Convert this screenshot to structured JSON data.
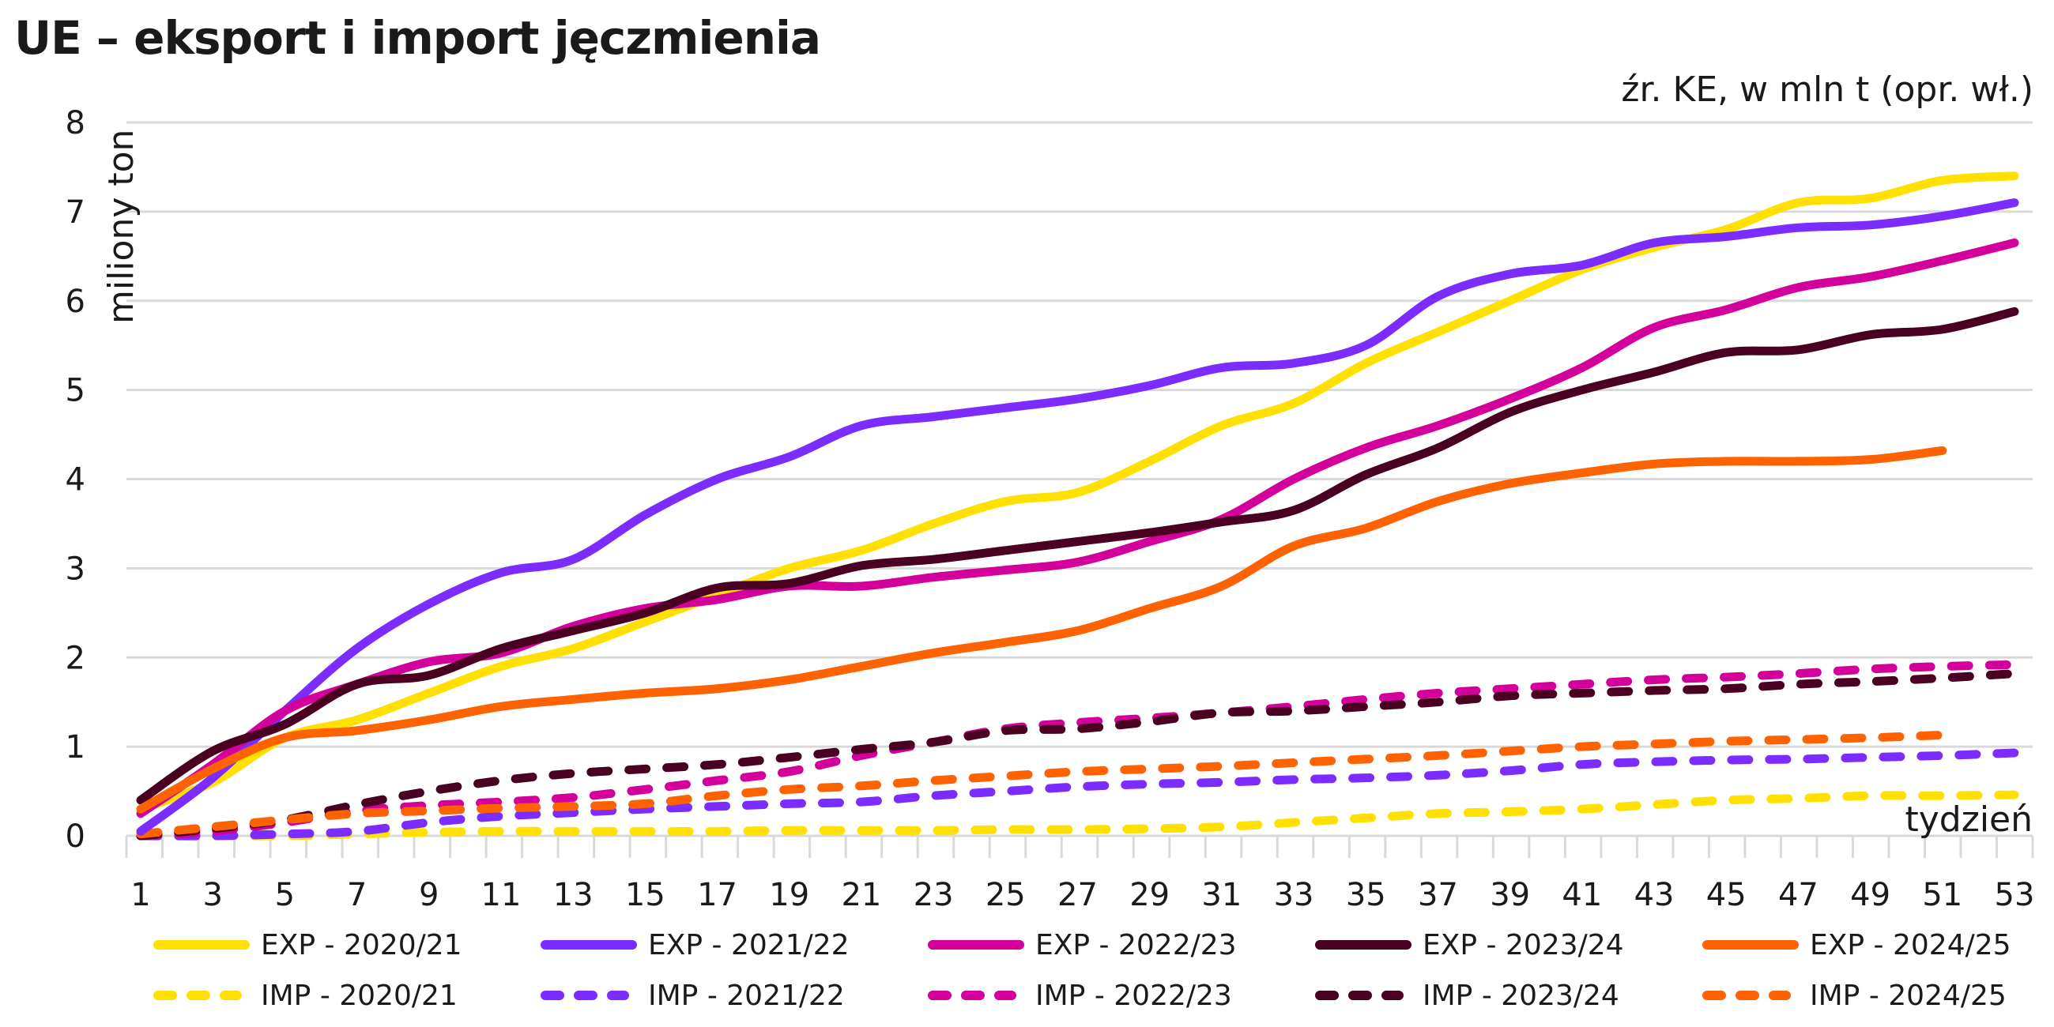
{
  "title": "UE – eksport i import jęczmienia",
  "source": "źr. KE, w mln t (opr. wł.)",
  "chart_data": {
    "type": "line",
    "title": "UE – eksport i import jęczmienia",
    "subtitle": "źr. KE, w mln t (opr. wł.)",
    "xlabel": "tydzień",
    "ylabel": "miliony ton",
    "xlim": [
      1,
      53
    ],
    "ylim": [
      0,
      8
    ],
    "yticks": [
      "0",
      "1",
      "2",
      "3",
      "4",
      "5",
      "6",
      "7",
      "8"
    ],
    "xtick_labels": [
      "1",
      "3",
      "5",
      "7",
      "9",
      "11",
      "13",
      "15",
      "17",
      "19",
      "21",
      "23",
      "25",
      "27",
      "29",
      "31",
      "33",
      "35",
      "37",
      "39",
      "41",
      "43",
      "45",
      "47",
      "49",
      "51",
      "53"
    ],
    "grid": "horizontal",
    "legend_position": "bottom",
    "x": [
      1,
      3,
      5,
      7,
      9,
      11,
      13,
      15,
      17,
      19,
      21,
      23,
      25,
      27,
      29,
      31,
      33,
      35,
      37,
      39,
      41,
      43,
      45,
      47,
      49,
      51,
      53
    ],
    "series": [
      {
        "name": "EXP - 2020/21",
        "color": "#FFE000",
        "style": "solid",
        "values": [
          0.3,
          0.6,
          1.1,
          1.3,
          1.6,
          1.9,
          2.1,
          2.4,
          2.7,
          3.0,
          3.2,
          3.5,
          3.75,
          3.85,
          4.2,
          4.6,
          4.85,
          5.3,
          5.65,
          6.0,
          6.35,
          6.6,
          6.8,
          7.1,
          7.15,
          7.35,
          7.4
        ]
      },
      {
        "name": "EXP - 2021/22",
        "color": "#7B2CFF",
        "style": "solid",
        "values": [
          0.05,
          0.65,
          1.4,
          2.1,
          2.6,
          2.95,
          3.1,
          3.6,
          4.0,
          4.25,
          4.6,
          4.7,
          4.8,
          4.9,
          5.05,
          5.25,
          5.3,
          5.5,
          6.05,
          6.3,
          6.4,
          6.65,
          6.72,
          6.82,
          6.85,
          6.95,
          7.1
        ]
      },
      {
        "name": "EXP - 2022/23",
        "color": "#D4009C",
        "style": "solid",
        "values": [
          0.25,
          0.8,
          1.4,
          1.7,
          1.95,
          2.05,
          2.35,
          2.55,
          2.65,
          2.8,
          2.8,
          2.9,
          2.98,
          3.07,
          3.3,
          3.55,
          4.0,
          4.35,
          4.6,
          4.9,
          5.25,
          5.7,
          5.9,
          6.15,
          6.27,
          6.45,
          6.65
        ]
      },
      {
        "name": "EXP - 2023/24",
        "color": "#4A0020",
        "style": "solid",
        "values": [
          0.4,
          0.95,
          1.25,
          1.7,
          1.8,
          2.1,
          2.3,
          2.5,
          2.78,
          2.83,
          3.03,
          3.1,
          3.2,
          3.3,
          3.4,
          3.52,
          3.65,
          4.05,
          4.35,
          4.75,
          5.0,
          5.2,
          5.42,
          5.45,
          5.62,
          5.68,
          5.88
        ]
      },
      {
        "name": "EXP - 2024/25",
        "color": "#FF6200",
        "style": "solid",
        "values": [
          0.3,
          0.75,
          1.1,
          1.18,
          1.3,
          1.45,
          1.53,
          1.6,
          1.65,
          1.75,
          1.9,
          2.05,
          2.17,
          2.3,
          2.55,
          2.8,
          3.25,
          3.45,
          3.75,
          3.95,
          4.07,
          4.17,
          4.2,
          4.2,
          4.22,
          4.32,
          null
        ]
      },
      {
        "name": "IMP - 2020/21",
        "color": "#FFE000",
        "style": "dashed",
        "values": [
          0.0,
          0.0,
          0.0,
          0.02,
          0.04,
          0.05,
          0.05,
          0.05,
          0.05,
          0.06,
          0.06,
          0.06,
          0.07,
          0.07,
          0.08,
          0.1,
          0.15,
          0.2,
          0.25,
          0.27,
          0.3,
          0.35,
          0.4,
          0.42,
          0.45,
          0.45,
          0.46
        ]
      },
      {
        "name": "IMP - 2021/22",
        "color": "#7B2CFF",
        "style": "dashed",
        "values": [
          0.0,
          0.0,
          0.02,
          0.05,
          0.15,
          0.22,
          0.26,
          0.3,
          0.33,
          0.36,
          0.38,
          0.45,
          0.5,
          0.55,
          0.58,
          0.6,
          0.63,
          0.65,
          0.68,
          0.73,
          0.8,
          0.83,
          0.85,
          0.86,
          0.88,
          0.9,
          0.93
        ]
      },
      {
        "name": "IMP - 2022/23",
        "color": "#D4009C",
        "style": "dashed",
        "values": [
          0.0,
          0.05,
          0.15,
          0.28,
          0.34,
          0.38,
          0.43,
          0.52,
          0.62,
          0.72,
          0.9,
          1.05,
          1.2,
          1.27,
          1.32,
          1.38,
          1.45,
          1.53,
          1.6,
          1.65,
          1.7,
          1.75,
          1.78,
          1.82,
          1.87,
          1.9,
          1.92
        ]
      },
      {
        "name": "IMP - 2023/24",
        "color": "#4A0020",
        "style": "dashed",
        "values": [
          0.0,
          0.08,
          0.18,
          0.35,
          0.5,
          0.62,
          0.7,
          0.75,
          0.8,
          0.88,
          0.97,
          1.05,
          1.18,
          1.2,
          1.28,
          1.38,
          1.4,
          1.45,
          1.5,
          1.57,
          1.6,
          1.63,
          1.65,
          1.7,
          1.73,
          1.77,
          1.82
        ]
      },
      {
        "name": "IMP - 2024/25",
        "color": "#FF6200",
        "style": "dashed",
        "values": [
          0.02,
          0.1,
          0.18,
          0.25,
          0.28,
          0.31,
          0.33,
          0.36,
          0.45,
          0.52,
          0.56,
          0.62,
          0.67,
          0.72,
          0.75,
          0.78,
          0.82,
          0.86,
          0.9,
          0.95,
          1.0,
          1.03,
          1.06,
          1.08,
          1.1,
          1.13,
          null
        ]
      }
    ]
  }
}
